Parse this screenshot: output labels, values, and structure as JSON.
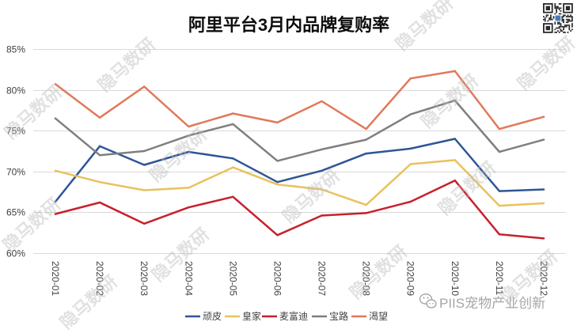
{
  "watermark": "隐马数研",
  "footer_caption": "PIIS宠物产业创新",
  "icons": {
    "top_right": "qr-code-icon",
    "caption": "wechat-icon"
  },
  "colors": {
    "grid": "#d9d9d9",
    "text": "#404040",
    "title": "#0d0d0d"
  },
  "chart_data": {
    "type": "line",
    "title": "阿里平台3月内品牌复购率",
    "x": [
      "2020-01",
      "2020-02",
      "2020-03",
      "2020-04",
      "2020-05",
      "2020-06",
      "2020-07",
      "2020-08",
      "2020-09",
      "2020-10",
      "2020-11",
      "2020-12"
    ],
    "ylim": [
      60,
      85
    ],
    "y_ticks": [
      {
        "value": 60,
        "label": "60%"
      },
      {
        "value": 65,
        "label": "65%"
      },
      {
        "value": 70,
        "label": "70%"
      },
      {
        "value": 75,
        "label": "75%"
      },
      {
        "value": 80,
        "label": "80%"
      },
      {
        "value": 85,
        "label": "85%"
      }
    ],
    "grid": true,
    "legend_position": "bottom",
    "series": [
      {
        "name": "顽皮",
        "color": "#2f5597",
        "values": [
          66.3,
          73.1,
          70.8,
          72.4,
          71.6,
          68.7,
          70.1,
          72.2,
          72.8,
          74.0,
          67.6,
          67.8
        ]
      },
      {
        "name": "皇家",
        "color": "#e8c25c",
        "values": [
          70.1,
          68.7,
          67.7,
          68.0,
          70.5,
          68.4,
          67.8,
          65.9,
          70.9,
          71.4,
          65.8,
          66.1
        ]
      },
      {
        "name": "麦富迪",
        "color": "#c8202c",
        "values": [
          64.8,
          66.2,
          63.6,
          65.6,
          66.9,
          62.2,
          64.6,
          64.9,
          66.3,
          68.9,
          62.3,
          61.8
        ]
      },
      {
        "name": "宝路",
        "color": "#7f7f7f",
        "values": [
          76.5,
          72.0,
          72.5,
          74.4,
          75.8,
          71.3,
          72.7,
          73.9,
          77.0,
          78.7,
          72.4,
          73.9
        ]
      },
      {
        "name": "渴望",
        "color": "#e0795a",
        "values": [
          80.7,
          76.6,
          80.4,
          75.5,
          77.1,
          76.0,
          78.6,
          75.2,
          81.4,
          82.3,
          75.2,
          76.7
        ]
      }
    ]
  }
}
